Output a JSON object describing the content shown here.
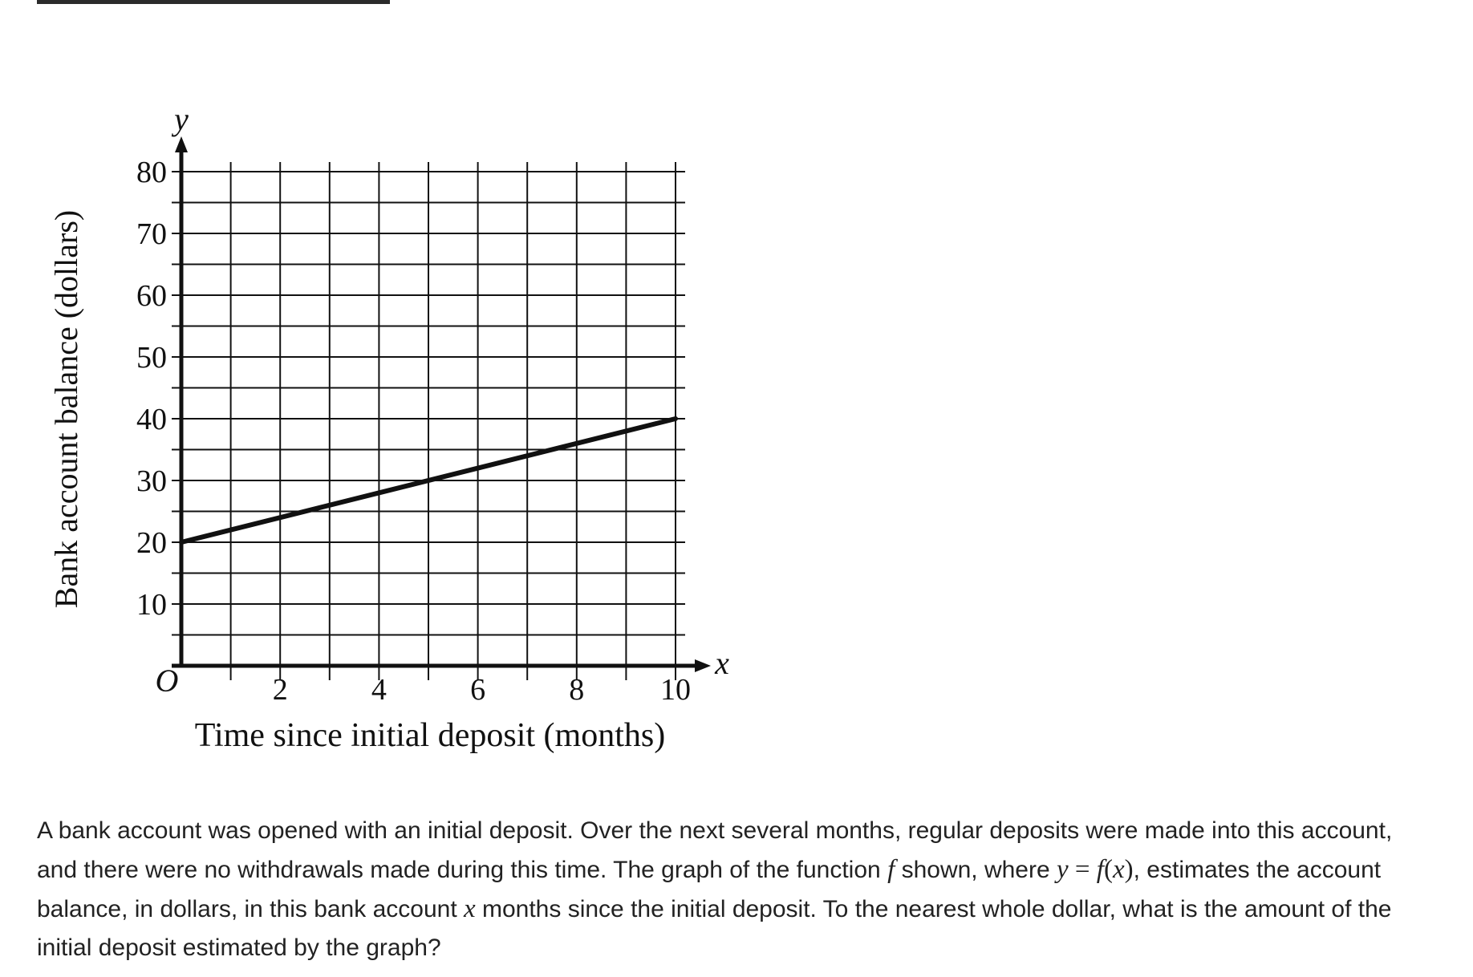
{
  "chart_data": {
    "type": "line",
    "xlabel": "Time since initial deposit (months)",
    "ylabel": "Bank account balance (dollars)",
    "x_axis_symbol": "x",
    "y_axis_symbol": "y",
    "origin_label": "O",
    "xlim": [
      0,
      10
    ],
    "ylim": [
      0,
      80
    ],
    "x_grid_step": 1,
    "y_grid_step": 5,
    "x_ticks": [
      2,
      4,
      6,
      8,
      10
    ],
    "y_ticks": [
      10,
      20,
      30,
      40,
      50,
      60,
      70,
      80
    ],
    "grid": true,
    "series": [
      {
        "x": [
          0,
          10
        ],
        "y": [
          20,
          40
        ]
      }
    ]
  },
  "question": {
    "part1": "A bank account was opened with an initial deposit. Over the next several months, regular deposits were made into this account, and there were no withdrawals made during this time. The graph of the function ",
    "f": "f",
    "part2": " shown, where ",
    "y": "y",
    "eq": " = ",
    "fx_f": "f",
    "fx_open": "(",
    "fx_x": "x",
    "fx_close": ")",
    "part3": ", estimates the account balance, in dollars, in this bank account ",
    "x": "x",
    "part4": " months since the initial deposit. To the nearest whole dollar, what is the amount of the initial deposit estimated by the graph?"
  }
}
